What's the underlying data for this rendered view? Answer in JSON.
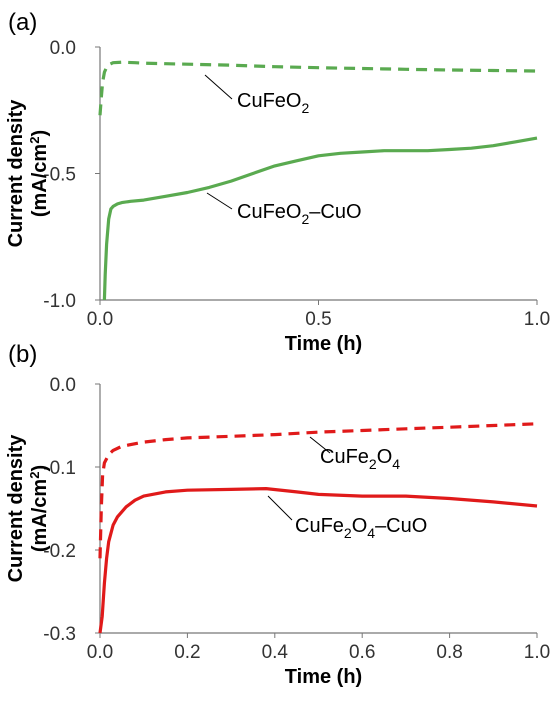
{
  "chart_data": [
    {
      "panel_label": "(a)",
      "type": "line",
      "xlabel": "Time (h)",
      "ylabel": "Current density",
      "ylabel_unit": "(mA/cm",
      "ylabel_unit_sup": "2",
      "ylabel_unit_end": ")",
      "xlim": [
        0,
        1
      ],
      "ylim": [
        -1,
        0
      ],
      "xticks": [
        "0.0",
        "0.5",
        "1.0"
      ],
      "yticks": [
        "-1.0",
        "-0.5",
        "0.0"
      ],
      "series": [
        {
          "name": "CuFeO2",
          "style": "dashed",
          "color": "#5aaa50",
          "x": [
            0,
            0.003,
            0.006,
            0.01,
            0.015,
            0.02,
            0.03,
            0.05,
            0.08,
            0.1,
            0.15,
            0.2,
            0.3,
            0.4,
            0.5,
            0.6,
            0.7,
            0.8,
            0.9,
            1.0
          ],
          "y": [
            -0.27,
            -0.2,
            -0.14,
            -0.1,
            -0.08,
            -0.07,
            -0.062,
            -0.06,
            -0.062,
            -0.064,
            -0.066,
            -0.068,
            -0.072,
            -0.078,
            -0.082,
            -0.085,
            -0.088,
            -0.091,
            -0.093,
            -0.095
          ]
        },
        {
          "name": "CuFeO2–CuO",
          "style": "solid",
          "color": "#5aaa50",
          "x": [
            0.01,
            0.012,
            0.015,
            0.02,
            0.025,
            0.03,
            0.04,
            0.05,
            0.07,
            0.1,
            0.15,
            0.2,
            0.25,
            0.3,
            0.35,
            0.4,
            0.45,
            0.5,
            0.55,
            0.6,
            0.65,
            0.7,
            0.75,
            0.8,
            0.85,
            0.9,
            0.95,
            1.0
          ],
          "y": [
            -1.0,
            -0.9,
            -0.78,
            -0.68,
            -0.64,
            -0.63,
            -0.62,
            -0.615,
            -0.61,
            -0.605,
            -0.59,
            -0.575,
            -0.555,
            -0.53,
            -0.5,
            -0.47,
            -0.45,
            -0.43,
            -0.42,
            -0.415,
            -0.41,
            -0.41,
            -0.41,
            -0.405,
            -0.4,
            -0.39,
            -0.375,
            -0.36
          ]
        }
      ],
      "annotations": [
        {
          "base": "CuFe",
          "sub": "",
          "mid": "O",
          "sub2": "2",
          "tail": ""
        },
        {
          "base": "CuFe",
          "sub": "",
          "mid": "O",
          "sub2": "2",
          "tail": "–CuO"
        }
      ]
    },
    {
      "panel_label": "(b)",
      "type": "line",
      "xlabel": "Time (h)",
      "ylabel": "Current density",
      "ylabel_unit": "(mA/cm",
      "ylabel_unit_sup": "2",
      "ylabel_unit_end": ")",
      "xlim": [
        0,
        1
      ],
      "ylim": [
        -0.3,
        0
      ],
      "xticks": [
        "0.0",
        "0.2",
        "0.4",
        "0.6",
        "0.8",
        "1.0"
      ],
      "yticks": [
        "-0.3",
        "-0.2",
        "-0.1",
        "0.0"
      ],
      "series": [
        {
          "name": "CuFe2O4",
          "style": "dashed",
          "color": "#e01a1a",
          "x": [
            0.0,
            0.003,
            0.006,
            0.01,
            0.02,
            0.03,
            0.05,
            0.1,
            0.15,
            0.2,
            0.3,
            0.4,
            0.5,
            0.6,
            0.7,
            0.8,
            0.9,
            1.0
          ],
          "y": [
            -0.21,
            -0.15,
            -0.11,
            -0.095,
            -0.085,
            -0.08,
            -0.075,
            -0.07,
            -0.067,
            -0.065,
            -0.063,
            -0.061,
            -0.058,
            -0.056,
            -0.054,
            -0.052,
            -0.05,
            -0.048
          ]
        },
        {
          "name": "CuFe2O4–CuO",
          "style": "solid",
          "color": "#e01a1a",
          "x": [
            0.0,
            0.005,
            0.01,
            0.015,
            0.02,
            0.03,
            0.04,
            0.06,
            0.08,
            0.1,
            0.15,
            0.2,
            0.3,
            0.38,
            0.45,
            0.5,
            0.6,
            0.7,
            0.8,
            0.9,
            1.0
          ],
          "y": [
            -0.3,
            -0.28,
            -0.24,
            -0.21,
            -0.19,
            -0.17,
            -0.16,
            -0.148,
            -0.14,
            -0.135,
            -0.13,
            -0.128,
            -0.127,
            -0.126,
            -0.13,
            -0.133,
            -0.135,
            -0.135,
            -0.138,
            -0.142,
            -0.147
          ]
        }
      ],
      "annotations": [
        {
          "base": "CuFe",
          "sub": "2",
          "mid": "O",
          "sub2": "4",
          "tail": ""
        },
        {
          "base": "CuFe",
          "sub": "2",
          "mid": "O",
          "sub2": "4",
          "tail": "–CuO"
        }
      ]
    }
  ]
}
